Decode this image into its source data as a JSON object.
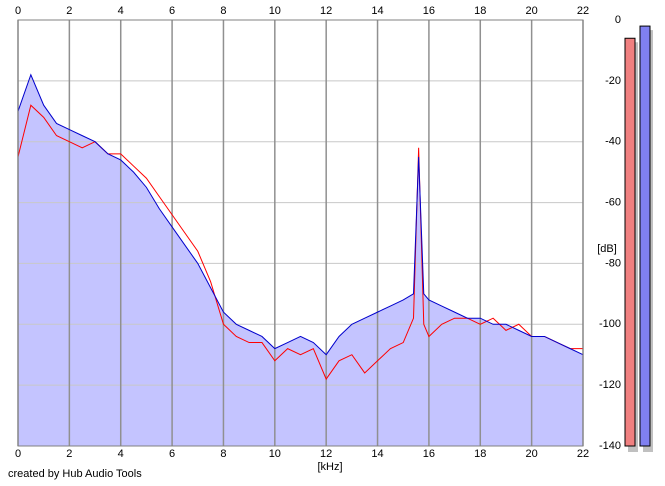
{
  "chart_data": {
    "type": "line",
    "xlabel": "[kHz]",
    "ylabel": "[dB]",
    "footer": "created by Hub Audio Tools",
    "x": [
      0,
      0.5,
      1,
      1.5,
      2,
      2.5,
      3,
      3.5,
      4,
      4.5,
      5,
      5.5,
      6,
      6.5,
      7,
      7.5,
      8,
      8.5,
      9,
      9.5,
      10,
      10.5,
      11,
      11.5,
      12,
      12.5,
      13,
      13.5,
      14,
      14.5,
      15,
      15.4,
      15.6,
      15.8,
      16,
      16.5,
      17,
      17.5,
      18,
      18.5,
      19,
      19.5,
      20,
      20.5,
      21,
      21.5,
      22
    ],
    "series": [
      {
        "color": "#ff0000",
        "values": [
          -45,
          -28,
          -32,
          -38,
          -40,
          -42,
          -40,
          -44,
          -44,
          -48,
          -52,
          -58,
          -64,
          -70,
          -76,
          -86,
          -100,
          -104,
          -106,
          -106,
          -112,
          -108,
          -110,
          -108,
          -118,
          -112,
          -110,
          -116,
          -112,
          -108,
          -106,
          -98,
          -42,
          -100,
          -104,
          -100,
          -98,
          -98,
          -100,
          -98,
          -102,
          -100,
          -104,
          -104,
          -106,
          -108,
          -108
        ]
      },
      {
        "color": "#0000cc",
        "values": [
          -30,
          -18,
          -28,
          -34,
          -36,
          -38,
          -40,
          -44,
          -46,
          -50,
          -55,
          -62,
          -68,
          -74,
          -80,
          -88,
          -96,
          -100,
          -102,
          -104,
          -108,
          -106,
          -104,
          -106,
          -110,
          -104,
          -100,
          -98,
          -96,
          -94,
          -92,
          -90,
          -45,
          -90,
          -92,
          -94,
          -96,
          -98,
          -98,
          -100,
          -100,
          -102,
          -104,
          -104,
          -106,
          -108,
          -110
        ]
      }
    ],
    "area_color": "#c4c4ff",
    "meters": [
      {
        "color": "#f08080",
        "value": -6
      },
      {
        "color": "#8080f0",
        "value": -2
      }
    ],
    "xlim": [
      0,
      22
    ],
    "xticks": [
      0,
      2,
      4,
      6,
      8,
      10,
      12,
      14,
      16,
      18,
      20,
      22
    ],
    "ylim": [
      -140,
      0
    ],
    "yticks": [
      0,
      -20,
      -40,
      -60,
      -80,
      -100,
      -120,
      -140
    ],
    "grid": true
  }
}
